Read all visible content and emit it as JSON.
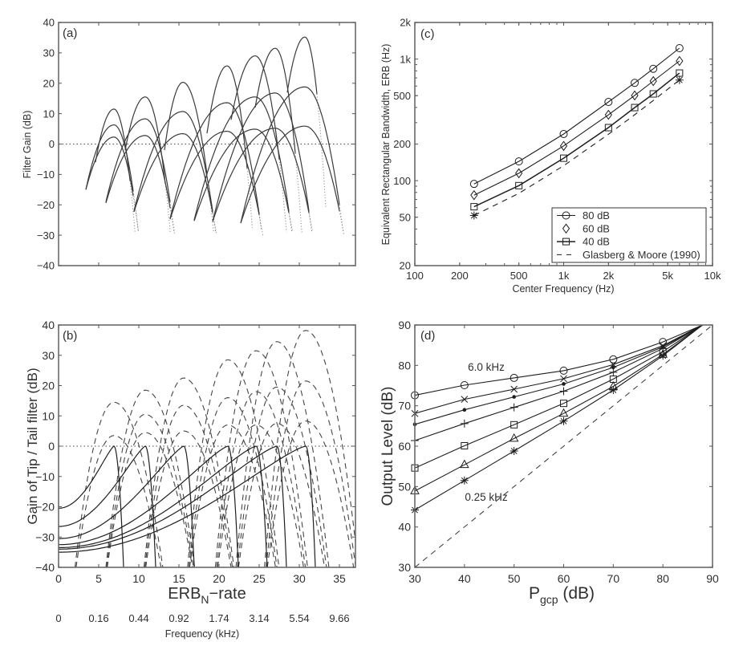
{
  "chart_data": [
    {
      "panel": "(a)",
      "type": "line",
      "xlabel": "",
      "ylabel": "Filter Gain (dB)",
      "xlim": [
        0,
        37
      ],
      "ylim": [
        -40,
        40
      ],
      "xticks": [
        5,
        10,
        15,
        20,
        25,
        30,
        35
      ],
      "yticks": [
        -40,
        -30,
        -20,
        -10,
        0,
        10,
        20,
        30,
        40
      ],
      "yticklabels": [
        "−40",
        "−30",
        "−20",
        "−10",
        "0",
        "10",
        "20",
        "30",
        "40"
      ],
      "grid": false,
      "reference_line": {
        "y": 0,
        "style": "dotted"
      },
      "filter_groups": [
        {
          "center": 6.9,
          "curves": [
            {
              "peak": 11.5,
              "left": [
                4.6,
                -6
              ],
              "right": [
                8.9,
                -12
              ]
            },
            {
              "peak": 6.3,
              "left": [
                3.4,
                -15
              ],
              "right": [
                9.3,
                -15.5
              ]
            },
            {
              "peak": 2.3,
              "left": [
                3.4,
                -15
              ],
              "right": [
                9.3,
                -17
              ]
            }
          ]
        },
        {
          "center": 10.8,
          "curves": [
            {
              "peak": 15.5,
              "left": [
                8.3,
                -2
              ],
              "right": [
                13.3,
                -13
              ]
            },
            {
              "peak": 8.3,
              "left": [
                5.9,
                -19
              ],
              "right": [
                13.9,
                -19
              ]
            },
            {
              "peak": 2.8,
              "left": [
                5.9,
                -19.4
              ],
              "right": [
                13.9,
                -21
              ]
            }
          ]
        },
        {
          "center": 15.5,
          "curves": [
            {
              "peak": 20.3,
              "left": [
                13.2,
                -2
              ],
              "right": [
                18.5,
                -10
              ]
            },
            {
              "peak": 10.7,
              "left": [
                9.4,
                -22
              ],
              "right": [
                19.2,
                -22
              ]
            },
            {
              "peak": 3.4,
              "left": [
                9.4,
                -22.3
              ],
              "right": [
                19.2,
                -22.6
              ]
            }
          ]
        },
        {
          "center": 21.0,
          "curves": [
            {
              "peak": 25.7,
              "left": [
                18.5,
                3.5
              ],
              "right": [
                23.5,
                -8
              ]
            },
            {
              "peak": 13.6,
              "left": [
                13.9,
                -24.5
              ],
              "right": [
                25.0,
                -23
              ]
            },
            {
              "peak": 4.2,
              "left": [
                13.9,
                -24.7
              ],
              "right": [
                25.0,
                -23.3
              ]
            }
          ]
        },
        {
          "center": 24.5,
          "curves": [
            {
              "peak": 29.0,
              "left": [
                21.5,
                8
              ],
              "right": [
                27.5,
                -5
              ]
            },
            {
              "peak": 15.5,
              "left": [
                16.9,
                -25
              ],
              "right": [
                28.7,
                -22
              ]
            },
            {
              "peak": 4.9,
              "left": [
                16.9,
                -25.3
              ],
              "right": [
                28.7,
                -22.6
              ]
            }
          ]
        },
        {
          "center": 27.0,
          "curves": [
            {
              "peak": 31.5,
              "left": [
                24.5,
                12
              ],
              "right": [
                29.5,
                -3
              ]
            },
            {
              "peak": 16.8,
              "left": [
                19.2,
                -25.5
              ],
              "right": [
                31.2,
                -22
              ]
            },
            {
              "peak": 5.2,
              "left": [
                19.2,
                -25.5
              ],
              "right": [
                31.2,
                -22.6
              ]
            }
          ]
        },
        {
          "center": 30.7,
          "curves": [
            {
              "peak": 35.2,
              "left": [
                28.5,
                17
              ],
              "right": [
                32.2,
                16.5
              ]
            },
            {
              "peak": 18.8,
              "left": [
                22.7,
                -26
              ],
              "right": [
                35.0,
                -20
              ]
            },
            {
              "peak": 5.9,
              "left": [
                22.7,
                -26
              ],
              "right": [
                35.0,
                -22
              ]
            }
          ]
        }
      ]
    },
    {
      "panel": "(b)",
      "type": "line",
      "ylabel": "Gain of Tip / Tail filter (dB)",
      "xlabel_parts": [
        "ERB",
        "N",
        "−rate"
      ],
      "xlim": [
        0,
        37
      ],
      "ylim": [
        -40,
        40
      ],
      "xticks": [
        0,
        5,
        10,
        15,
        20,
        25,
        30,
        35
      ],
      "yticks": [
        -40,
        -30,
        -20,
        -10,
        0,
        10,
        20,
        30,
        40
      ],
      "yticklabels": [
        "−40",
        "−30",
        "−20",
        "−10",
        "0",
        "10",
        "20",
        "30",
        "40"
      ],
      "grid": false,
      "reference_line": {
        "y": 0,
        "style": "dotted"
      },
      "secondary_x_axis": {
        "title": "Frequency (kHz)",
        "at_erb": [
          0,
          5,
          10,
          15,
          20,
          25,
          30,
          35
        ],
        "labels": [
          "0",
          "0.16",
          "0.44",
          "0.92",
          "1.74",
          "3.14",
          "5.54",
          "9.66"
        ]
      },
      "tail_filters": [
        {
          "peak_erb": 6.9,
          "gain_at_0": -20.5,
          "cutoff_erb": 8.1
        },
        {
          "peak_erb": 10.8,
          "gain_at_0": -26.5,
          "cutoff_erb": 12.1
        },
        {
          "peak_erb": 15.6,
          "gain_at_0": -30.5,
          "cutoff_erb": 16.9
        },
        {
          "peak_erb": 21.1,
          "gain_at_0": -32.5,
          "cutoff_erb": 22.4
        },
        {
          "peak_erb": 24.6,
          "gain_at_0": -33.5,
          "cutoff_erb": 26.0
        },
        {
          "peak_erb": 27.2,
          "gain_at_0": -34.0,
          "cutoff_erb": 28.4
        },
        {
          "peak_erb": 30.8,
          "gain_at_0": -35.0,
          "cutoff_erb": 32.0
        }
      ],
      "tip_filters": [
        {
          "center_erb": 6.9,
          "peaks": [
            14.5,
            3.5
          ]
        },
        {
          "center_erb": 10.8,
          "peaks": [
            18.5,
            10.5,
            4.5
          ]
        },
        {
          "center_erb": 15.6,
          "peaks": [
            22.5,
            13.5,
            5.0
          ]
        },
        {
          "center_erb": 21.1,
          "peaks": [
            28.5,
            16.0,
            7.0
          ]
        },
        {
          "center_erb": 24.6,
          "peaks": [
            31.5,
            18.0,
            7.0
          ]
        },
        {
          "center_erb": 27.2,
          "peaks": [
            34.5,
            19.5,
            7.5
          ]
        },
        {
          "center_erb": 30.8,
          "peaks": [
            38.2,
            21.5,
            8.3
          ]
        }
      ]
    },
    {
      "panel": "(c)",
      "type": "line",
      "xscale": "log",
      "yscale": "log",
      "xlabel": "Center Frequency (Hz)",
      "ylabel": "Equivalent Rectangular Bandwidth, ERB (Hz)",
      "xlim": [
        100,
        10000
      ],
      "ylim": [
        20,
        2000
      ],
      "xticks": [
        100,
        200,
        500,
        1000,
        2000,
        5000,
        10000
      ],
      "xticklabels": [
        "100",
        "200",
        "500",
        "1k",
        "2k",
        "5k",
        "10k"
      ],
      "yticks": [
        20,
        50,
        100,
        200,
        500,
        1000,
        2000
      ],
      "yticklabels": [
        "20",
        "50",
        "100",
        "200",
        "500",
        "1k",
        "2k"
      ],
      "grid": false,
      "legend": "bottom-right",
      "x": [
        250,
        500,
        1000,
        2000,
        3000,
        4000,
        6000
      ],
      "series": [
        {
          "name": "80 dB",
          "marker": "circle",
          "style": "solid",
          "legend_shows_line": true,
          "values": [
            94,
            144,
            242,
            444,
            637,
            832,
            1230
          ]
        },
        {
          "name": "60 dB",
          "marker": "diamond",
          "style": "solid",
          "legend_shows_line": false,
          "values": [
            76,
            115,
            193,
            348,
            502,
            659,
            964
          ]
        },
        {
          "name": "40 dB",
          "marker": "square",
          "style": "solid",
          "legend_shows_line": true,
          "values": [
            61,
            91,
            153,
            273,
            399,
            517,
            767
          ]
        },
        {
          "name": "Glasberg & Moore (1990)",
          "marker": "star",
          "markers_at": [
            250,
            6000
          ],
          "style": "dashed",
          "legend_shows_line": true,
          "values": [
            51.7,
            78.7,
            132.6,
            240.6,
            348.5,
            456.5,
            672.3
          ]
        }
      ]
    },
    {
      "panel": "(d)",
      "type": "line",
      "xlabel_parts": [
        "P",
        "gcp",
        " (dB)"
      ],
      "ylabel": "Output Level (dB)",
      "xlim": [
        30,
        90
      ],
      "ylim": [
        30,
        90
      ],
      "xticks": [
        30,
        40,
        50,
        60,
        70,
        80,
        90
      ],
      "yticks": [
        30,
        40,
        50,
        60,
        70,
        80,
        90
      ],
      "grid": false,
      "x": [
        30,
        40,
        50,
        60,
        70,
        80
      ],
      "convergence_point": [
        88,
        90
      ],
      "reference_line": {
        "from": [
          30,
          30
        ],
        "to": [
          90,
          90
        ],
        "style": "dashed"
      },
      "annotations": [
        "6.0 kHz",
        "0.25 kHz"
      ],
      "series": [
        {
          "marker": "circle",
          "values": [
            72.6,
            75.1,
            76.9,
            78.7,
            81.5,
            85.8
          ]
        },
        {
          "marker": "x",
          "values": [
            68.1,
            71.6,
            74.1,
            76.7,
            80.2,
            84.9
          ]
        },
        {
          "marker": "dot",
          "values": [
            65.4,
            69.0,
            72.2,
            75.4,
            79.5,
            84.6
          ]
        },
        {
          "marker": "plus",
          "values": [
            61.4,
            65.6,
            69.6,
            73.6,
            78.3,
            84.2
          ]
        },
        {
          "marker": "square",
          "values": [
            54.6,
            60.1,
            65.3,
            70.6,
            76.6,
            83.4
          ]
        },
        {
          "marker": "triangle",
          "values": [
            48.9,
            55.4,
            61.9,
            68.1,
            74.8,
            82.7
          ]
        },
        {
          "marker": "star",
          "values": [
            44.2,
            51.5,
            58.8,
            66.2,
            73.9,
            82.4
          ]
        }
      ]
    }
  ]
}
